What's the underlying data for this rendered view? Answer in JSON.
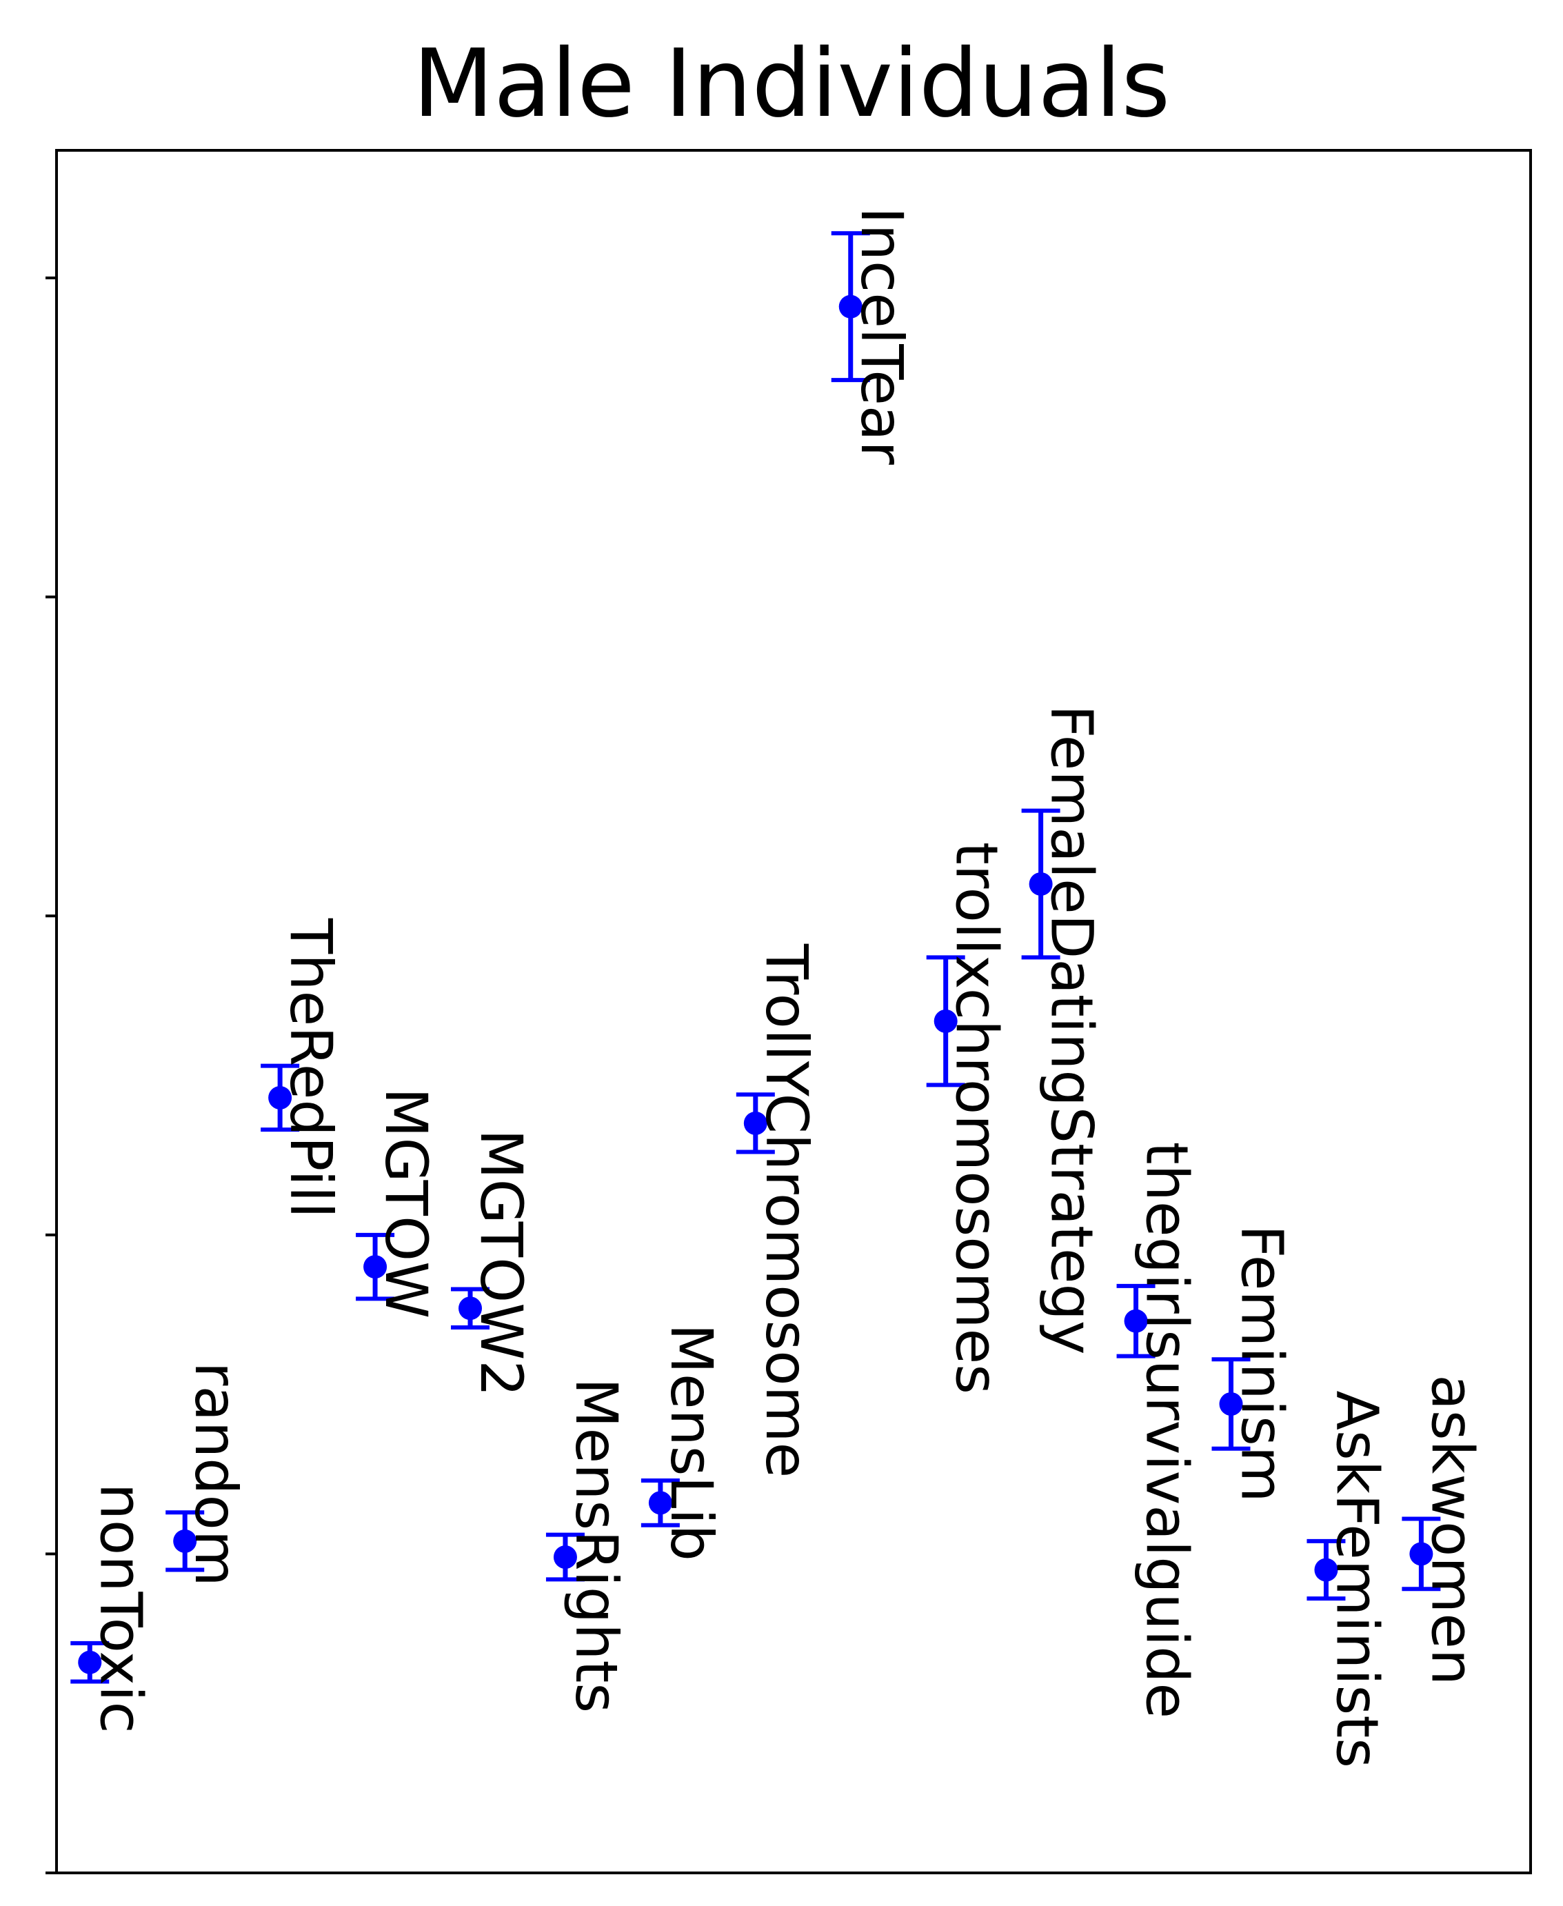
{
  "chart_data": {
    "type": "scatter",
    "title": "Male Individuals",
    "xlabel": "",
    "ylabel": "",
    "y_tick_labels": [
      "",
      "",
      "",
      "",
      "",
      ""
    ],
    "grid": false,
    "legend": "none",
    "marker_color": "#0000ff",
    "xlim": [
      0,
      15.5
    ],
    "ylim": [
      0,
      5.4
    ],
    "points": [
      {
        "label": "nonToxic",
        "x": 0.35,
        "y": 0.66,
        "err": 0.06
      },
      {
        "label": "random",
        "x": 1.35,
        "y": 1.04,
        "err": 0.09
      },
      {
        "label": "TheRedPill",
        "x": 2.35,
        "y": 2.43,
        "err": 0.1
      },
      {
        "label": "MGTOW",
        "x": 3.35,
        "y": 1.9,
        "err": 0.1
      },
      {
        "label": "MGTOW2",
        "x": 4.35,
        "y": 1.77,
        "err": 0.06
      },
      {
        "label": "MensRights",
        "x": 5.35,
        "y": 0.99,
        "err": 0.07
      },
      {
        "label": "MensLib",
        "x": 6.35,
        "y": 1.16,
        "err": 0.07
      },
      {
        "label": "TrollYChromosome",
        "x": 7.35,
        "y": 2.35,
        "err": 0.09
      },
      {
        "label": "IncelTear",
        "x": 8.35,
        "y": 4.91,
        "err": 0.23
      },
      {
        "label": "trollxchromosomes",
        "x": 9.35,
        "y": 2.67,
        "err": 0.2
      },
      {
        "label": "FemaleDatingStrategy",
        "x": 10.35,
        "y": 3.1,
        "err": 0.23
      },
      {
        "label": "thegirlsurvivalguide",
        "x": 11.35,
        "y": 1.73,
        "err": 0.11
      },
      {
        "label": "Feminism",
        "x": 12.35,
        "y": 1.47,
        "err": 0.14
      },
      {
        "label": "AskFeminists",
        "x": 13.35,
        "y": 0.95,
        "err": 0.09
      },
      {
        "label": "askwomen",
        "x": 14.35,
        "y": 1.0,
        "err": 0.11
      }
    ],
    "y_ticks": [
      0,
      1,
      2,
      3,
      4,
      5
    ]
  }
}
